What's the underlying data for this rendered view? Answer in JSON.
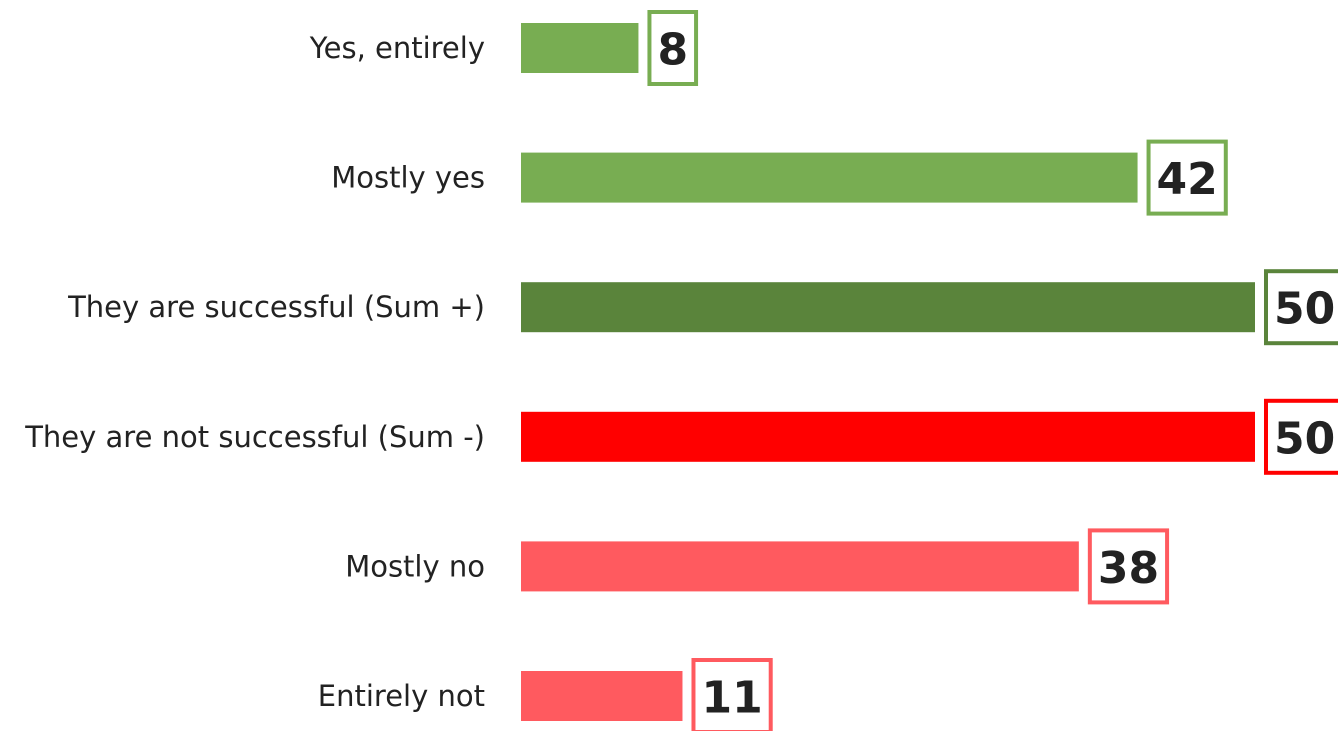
{
  "chart_data": {
    "type": "barh",
    "categories": [
      "Yes, entirely",
      "Mostly yes",
      "They are successful (Sum +)",
      "They are not successful (Sum -)",
      "Mostly no",
      "Entirely not"
    ],
    "values": [
      8,
      42,
      50,
      50,
      38,
      11
    ],
    "colors": [
      "#78ad52",
      "#78ad52",
      "#5a843b",
      "#ff0000",
      "#ff5a5f",
      "#ff5a5f"
    ]
  }
}
